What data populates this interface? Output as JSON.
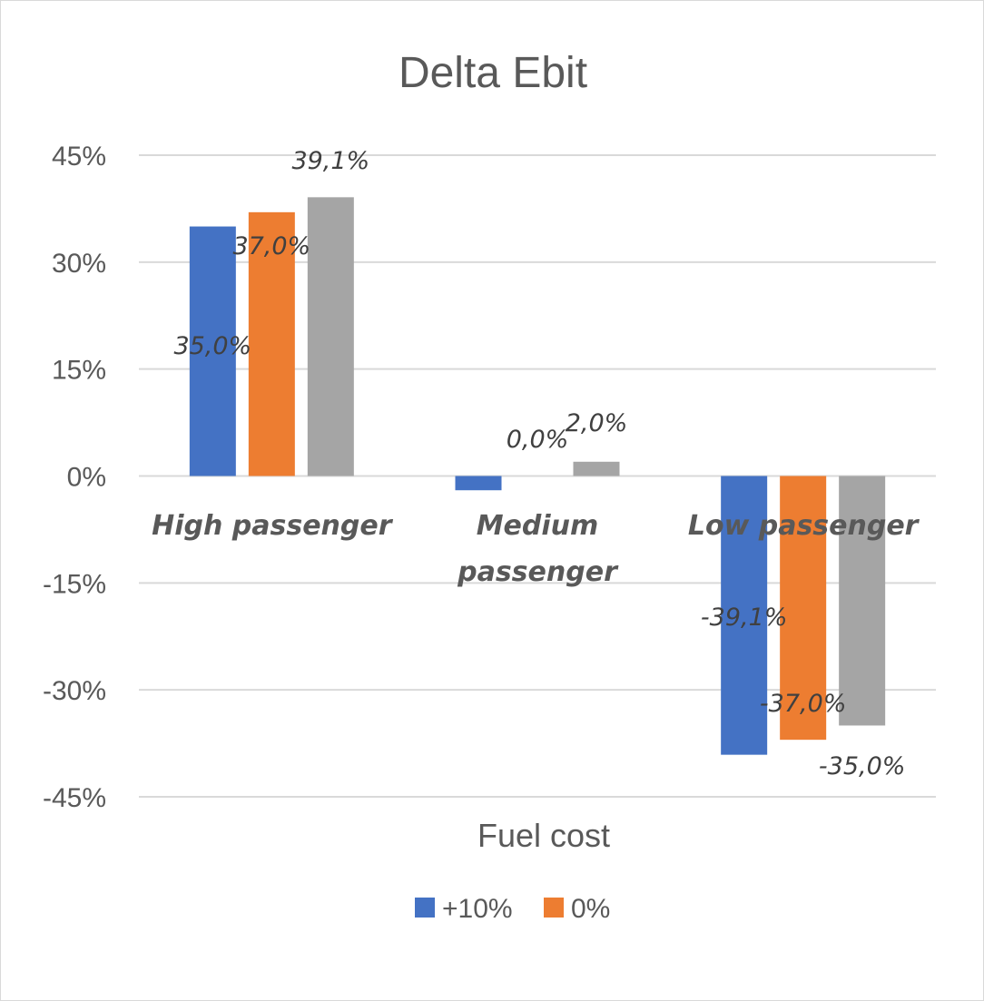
{
  "chart_data": {
    "type": "bar",
    "title": "Delta Ebit",
    "xlabel": "Fuel cost",
    "ylabel": "",
    "ylim": [
      -45,
      45
    ],
    "yticks": [
      "45%",
      "30%",
      "15%",
      "0%",
      "-15%",
      "-30%",
      "-45%"
    ],
    "ytick_values": [
      45,
      30,
      15,
      0,
      -15,
      -30,
      -45
    ],
    "categories": [
      {
        "line1": "High passenger",
        "line2": ""
      },
      {
        "line1": "Medium",
        "line2": "passenger"
      },
      {
        "line1": "Low passenger",
        "line2": ""
      }
    ],
    "series": [
      {
        "name": "+10%",
        "color": "#4472c4",
        "values": [
          35.0,
          -2.0,
          -39.1
        ],
        "labels": [
          "35,0%",
          "",
          "-39,1%"
        ]
      },
      {
        "name": "0%",
        "color": "#ed7d31",
        "values": [
          37.0,
          0.0,
          -37.0
        ],
        "labels": [
          "37,0%",
          "0,0%",
          "-37,0%"
        ]
      },
      {
        "name": "",
        "color": "#a5a5a5",
        "values": [
          39.1,
          2.0,
          -35.0
        ],
        "labels": [
          "39,1%",
          "2,0%",
          "-35,0%"
        ]
      }
    ],
    "legend": {
      "position": "bottom"
    },
    "grid": true
  }
}
